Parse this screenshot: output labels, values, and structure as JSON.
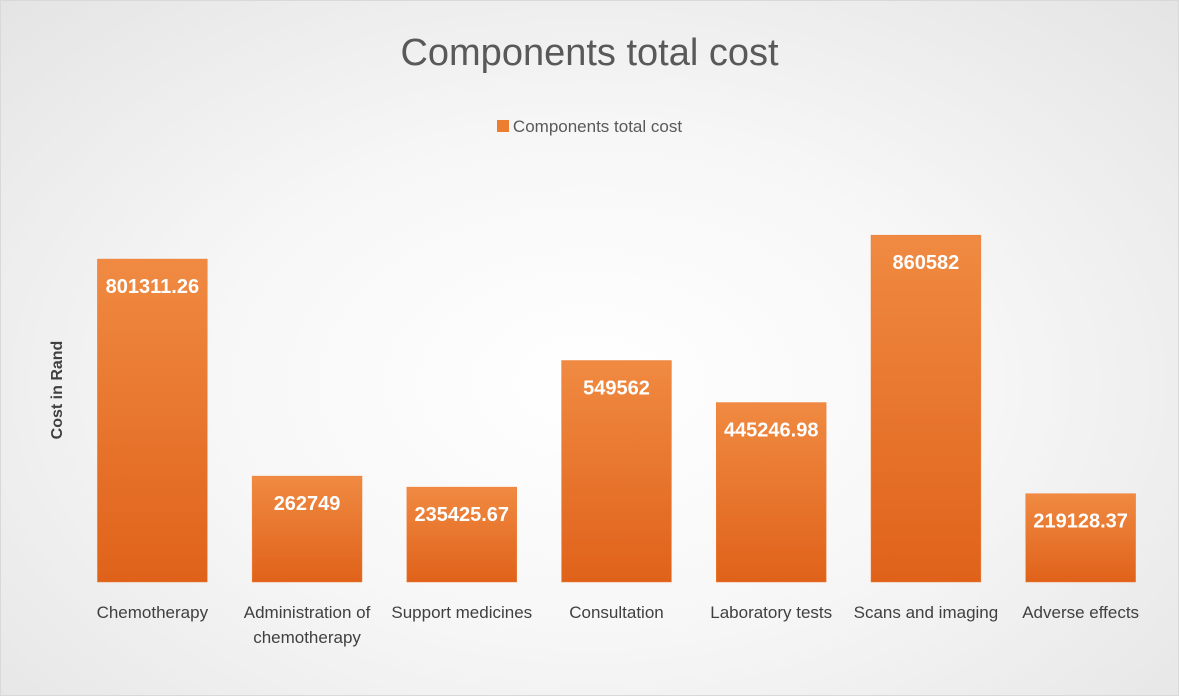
{
  "chart_data": {
    "type": "bar",
    "title": "Components total cost",
    "y_label": "Cost in Rand",
    "legend": "top",
    "categories": [
      "Chemotherapy",
      "Administration of chemotherapy",
      "Support medicines",
      "Consultation",
      "Laboratory tests",
      "Scans and imaging",
      "Adverse effects"
    ],
    "series": [
      {
        "name": "Components total cost",
        "color": "#ed7d31",
        "values": [
          801311.26,
          262749,
          235425.67,
          549562,
          445246.98,
          860582,
          219128.37
        ]
      }
    ],
    "ylim": [
      0,
      1000000
    ]
  }
}
